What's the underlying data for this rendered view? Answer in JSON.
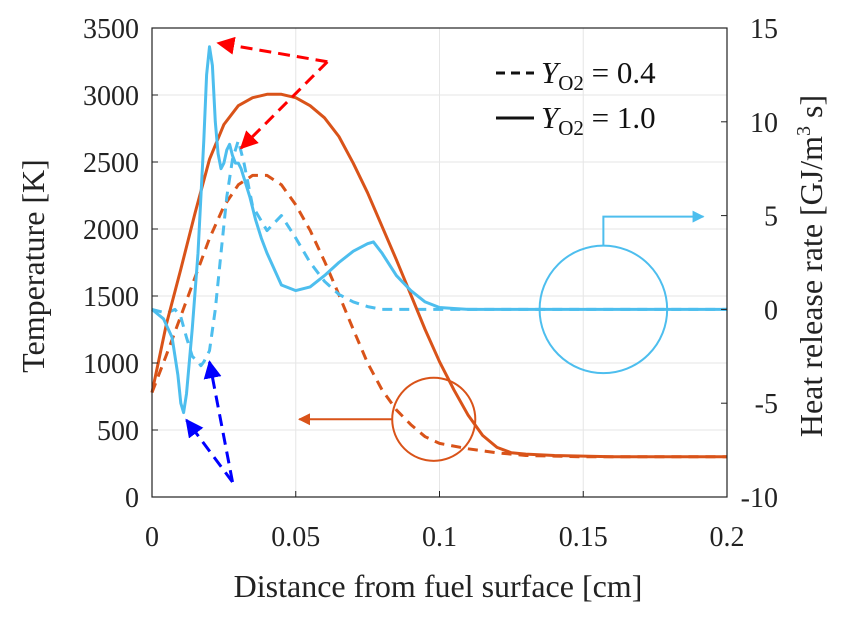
{
  "chart_data": {
    "type": "line",
    "xlabel": "Distance from fuel surface [cm]",
    "ylabel_left": "Temperature [K]",
    "ylabel_right_parts": [
      "Heat release rate [GJ/m",
      "3",
      " s]"
    ],
    "xlim": [
      0,
      0.2
    ],
    "ylim_left": [
      0,
      3500
    ],
    "ylim_right": [
      -10,
      15
    ],
    "x_ticks": [
      "0",
      "0.05",
      "0.1",
      "0.15",
      "0.2"
    ],
    "x_tick_values": [
      0,
      0.05,
      0.1,
      0.15,
      0.2
    ],
    "left_ticks": [
      "0",
      "500",
      "1000",
      "1500",
      "2000",
      "2500",
      "3000",
      "3500"
    ],
    "left_tick_values": [
      0,
      500,
      1000,
      1500,
      2000,
      2500,
      3000,
      3500
    ],
    "right_ticks": [
      "-10",
      "-5",
      "0",
      "5",
      "10",
      "15"
    ],
    "right_tick_values": [
      -10,
      -5,
      0,
      5,
      10,
      15
    ],
    "grid": true,
    "legend": {
      "position": "top-right",
      "entries": [
        {
          "style": "dashed",
          "var": "Y",
          "sub": "O2",
          "rest": " = 0.4"
        },
        {
          "style": "solid",
          "var": "Y",
          "sub": "O2",
          "rest": " = 1.0"
        }
      ]
    },
    "colors": {
      "temperature": "#d95319",
      "heat_release": "#4dbeee",
      "red_arrow": "#ff0000",
      "blue_arrow": "#0000ff"
    },
    "series": [
      {
        "name": "Temperature, Y_O2 = 1.0",
        "axis": "left",
        "style": "solid",
        "color": "#d95319",
        "x": [
          0,
          0.005,
          0.01,
          0.015,
          0.02,
          0.025,
          0.03,
          0.035,
          0.04,
          0.045,
          0.05,
          0.055,
          0.06,
          0.065,
          0.07,
          0.075,
          0.08,
          0.085,
          0.09,
          0.095,
          0.1,
          0.105,
          0.11,
          0.115,
          0.12,
          0.125,
          0.13,
          0.14,
          0.15,
          0.16,
          0.18,
          0.2
        ],
        "values": [
          780,
          1290,
          1700,
          2120,
          2520,
          2780,
          2920,
          2980,
          3005,
          3005,
          2980,
          2920,
          2830,
          2690,
          2490,
          2270,
          2020,
          1770,
          1510,
          1250,
          1010,
          800,
          610,
          460,
          370,
          330,
          320,
          310,
          305,
          300,
          300,
          300
        ]
      },
      {
        "name": "Temperature, Y_O2 = 0.4",
        "axis": "left",
        "style": "dashed",
        "color": "#d95319",
        "x": [
          0,
          0.005,
          0.01,
          0.015,
          0.02,
          0.025,
          0.03,
          0.035,
          0.04,
          0.045,
          0.05,
          0.055,
          0.06,
          0.065,
          0.07,
          0.075,
          0.08,
          0.085,
          0.09,
          0.095,
          0.1,
          0.11,
          0.12,
          0.13,
          0.14,
          0.15,
          0.16,
          0.18,
          0.2
        ],
        "values": [
          780,
          1060,
          1350,
          1640,
          1930,
          2170,
          2330,
          2400,
          2400,
          2330,
          2180,
          1990,
          1760,
          1510,
          1250,
          1000,
          800,
          650,
          540,
          450,
          400,
          360,
          330,
          310,
          305,
          300,
          300,
          300,
          300
        ]
      },
      {
        "name": "Heat release rate, Y_O2 = 1.0",
        "axis": "right",
        "style": "solid",
        "color": "#4dbeee",
        "x": [
          0,
          0.004,
          0.007,
          0.009,
          0.01,
          0.011,
          0.012,
          0.014,
          0.016,
          0.018,
          0.019,
          0.02,
          0.021,
          0.022,
          0.023,
          0.024,
          0.025,
          0.026,
          0.027,
          0.028,
          0.029,
          0.03,
          0.031,
          0.032,
          0.034,
          0.036,
          0.038,
          0.04,
          0.045,
          0.05,
          0.055,
          0.06,
          0.065,
          0.07,
          0.075,
          0.077,
          0.08,
          0.085,
          0.09,
          0.095,
          0.1,
          0.105,
          0.11,
          0.12,
          0.2
        ],
        "values": [
          0,
          -0.5,
          -1.5,
          -3.5,
          -5,
          -5.5,
          -4.5,
          -1,
          3,
          9,
          12.5,
          14,
          13,
          10,
          8.3,
          7.5,
          7.8,
          8.5,
          8.8,
          8.2,
          7.8,
          7.8,
          7.5,
          7,
          6,
          4.8,
          3.8,
          3,
          1.3,
          1,
          1.2,
          1.8,
          2.5,
          3.1,
          3.5,
          3.6,
          3,
          1.8,
          1,
          0.4,
          0.1,
          0.05,
          0,
          0,
          0
        ]
      },
      {
        "name": "Heat release rate, Y_O2 = 0.4",
        "axis": "right",
        "style": "dashed",
        "color": "#4dbeee",
        "x": [
          0,
          0.005,
          0.008,
          0.01,
          0.012,
          0.014,
          0.016,
          0.017,
          0.018,
          0.02,
          0.022,
          0.024,
          0.026,
          0.028,
          0.03,
          0.032,
          0.035,
          0.04,
          0.045,
          0.05,
          0.055,
          0.06,
          0.065,
          0.07,
          0.075,
          0.08,
          0.09,
          0.1,
          0.11,
          0.2
        ],
        "values": [
          0,
          -0.2,
          0,
          -0.4,
          -1.5,
          -2.5,
          -2.8,
          -3,
          -2.8,
          -2.2,
          0,
          3,
          6,
          8,
          9,
          7.8,
          5.5,
          4.2,
          5,
          3.8,
          2.5,
          1.5,
          0.8,
          0.4,
          0.15,
          0,
          0,
          0,
          0,
          0
        ]
      }
    ],
    "annotations": [
      {
        "type": "circle",
        "color": "#4dbeee",
        "target": "right axis",
        "center": [
          0.157,
          0
        ],
        "radius_y": 3.4,
        "arrow_to": "right"
      },
      {
        "type": "circle",
        "color": "#d95319",
        "target": "left axis",
        "center": [
          0.098,
          580
        ],
        "radius_y": 310,
        "arrow_to": "left"
      },
      {
        "type": "dashed-arrows",
        "color": "#ff0000",
        "points_right": [
          [
            0.061,
            13.2
          ],
          [
            0.023,
            14.2
          ],
          [
            0.031,
            8.6
          ]
        ]
      },
      {
        "type": "dashed-arrows",
        "color": "#0000ff",
        "points_right": [
          [
            0.028,
            -9.2
          ],
          [
            0.012,
            -5.9
          ],
          [
            0.02,
            -2.8
          ]
        ]
      }
    ]
  }
}
